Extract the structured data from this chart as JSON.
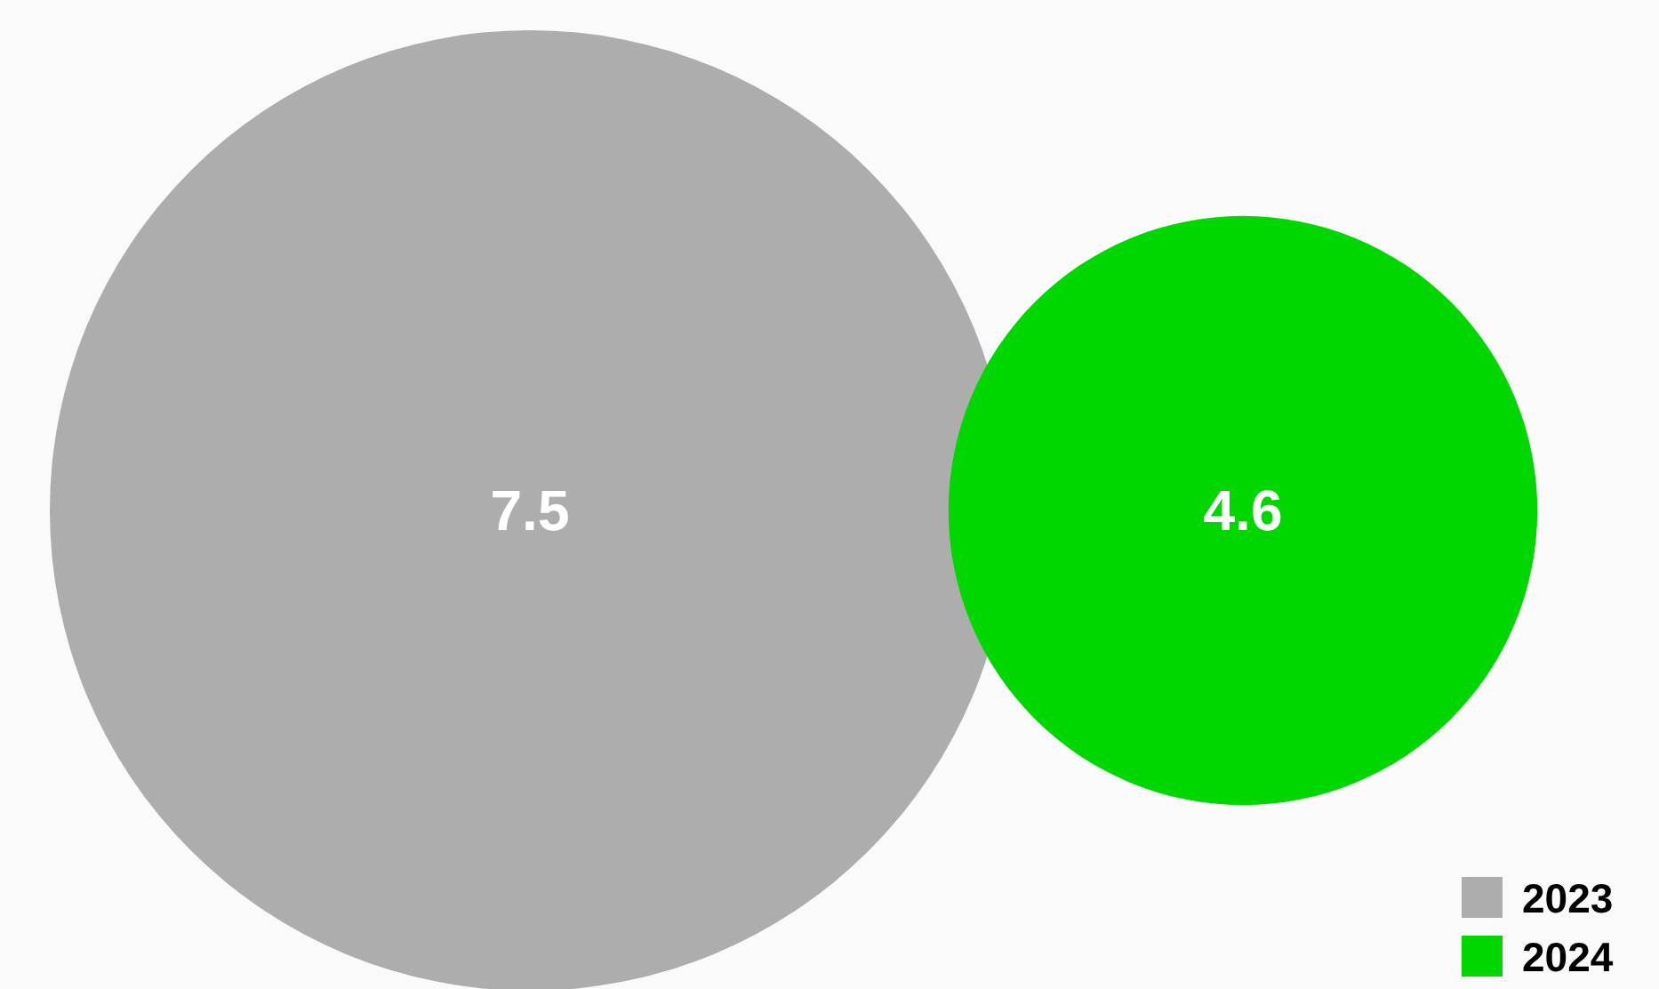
{
  "chart_data": {
    "type": "other",
    "categories": [
      null,
      null
    ],
    "values": [
      7.5,
      4.6
    ],
    "colors": [
      "#adadad",
      "#00d600"
    ],
    "data_labels": true,
    "annotations": [
      "2023",
      "2024"
    ]
  }
}
